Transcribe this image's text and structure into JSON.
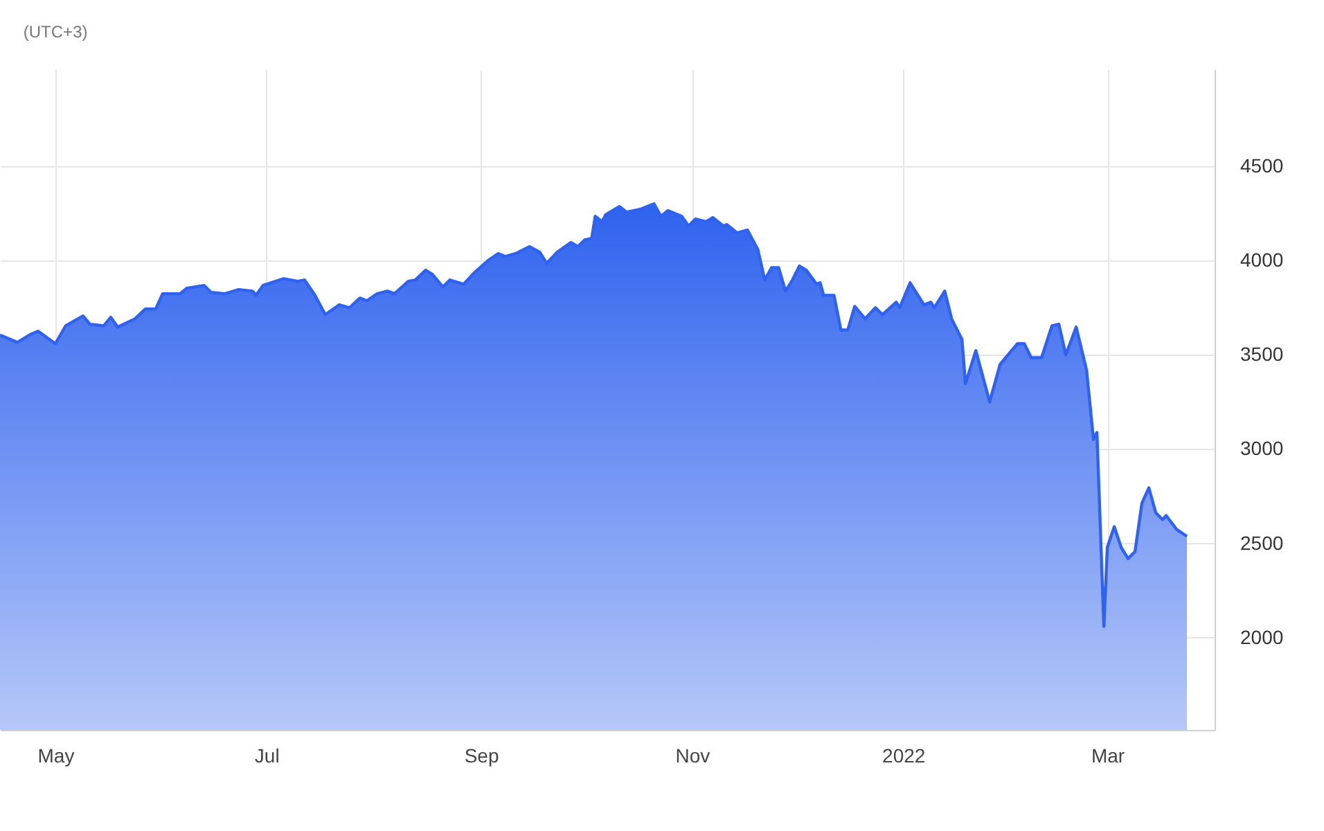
{
  "chart_data": {
    "type": "area",
    "title": "(UTC+3)",
    "x": [
      "2021-04-15",
      "2021-04-20",
      "2021-04-24",
      "2021-04-26",
      "2021-05-01",
      "2021-05-04",
      "2021-05-09",
      "2021-05-11",
      "2021-05-15",
      "2021-05-17",
      "2021-05-19",
      "2021-05-24",
      "2021-05-27",
      "2021-05-30",
      "2021-06-01",
      "2021-06-06",
      "2021-06-08",
      "2021-06-13",
      "2021-06-15",
      "2021-06-19",
      "2021-06-23",
      "2021-06-27",
      "2021-06-28",
      "2021-06-30",
      "2021-07-06",
      "2021-07-10",
      "2021-07-12",
      "2021-07-15",
      "2021-07-18",
      "2021-07-22",
      "2021-07-25",
      "2021-07-28",
      "2021-07-30",
      "2021-08-02",
      "2021-08-05",
      "2021-08-07",
      "2021-08-11",
      "2021-08-13",
      "2021-08-16",
      "2021-08-18",
      "2021-08-21",
      "2021-08-23",
      "2021-08-27",
      "2021-08-30",
      "2021-09-03",
      "2021-09-06",
      "2021-09-08",
      "2021-09-11",
      "2021-09-15",
      "2021-09-18",
      "2021-09-20",
      "2021-09-23",
      "2021-09-27",
      "2021-09-29",
      "2021-10-01",
      "2021-10-03",
      "2021-10-04",
      "2021-10-06",
      "2021-10-07",
      "2021-10-11",
      "2021-10-13",
      "2021-10-17",
      "2021-10-21",
      "2021-10-23",
      "2021-10-25",
      "2021-10-29",
      "2021-10-31",
      "2021-11-02",
      "2021-11-05",
      "2021-11-07",
      "2021-11-10",
      "2021-11-11",
      "2021-11-14",
      "2021-11-17",
      "2021-11-20",
      "2021-11-22",
      "2021-11-24",
      "2021-11-26",
      "2021-11-28",
      "2021-11-30",
      "2021-12-02",
      "2021-12-04",
      "2021-12-07",
      "2021-12-08",
      "2021-12-09",
      "2021-12-12",
      "2021-12-14",
      "2021-12-16",
      "2021-12-18",
      "2021-12-21",
      "2021-12-24",
      "2021-12-26",
      "2021-12-30",
      "2021-12-31",
      "2022-01-03",
      "2022-01-07",
      "2022-01-09",
      "2022-01-10",
      "2022-01-13",
      "2022-01-15",
      "2022-01-18",
      "2022-01-19",
      "2022-01-22",
      "2022-01-26",
      "2022-01-29",
      "2022-02-03",
      "2022-02-05",
      "2022-02-07",
      "2022-02-10",
      "2022-02-13",
      "2022-02-15",
      "2022-02-17",
      "2022-02-20",
      "2022-02-23",
      "2022-02-25",
      "2022-02-26",
      "2022-02-28",
      "2022-03-01",
      "2022-03-03",
      "2022-03-05",
      "2022-03-07",
      "2022-03-09",
      "2022-03-11",
      "2022-03-13",
      "2022-03-15",
      "2022-03-17",
      "2022-03-18",
      "2022-03-21",
      "2022-03-24"
    ],
    "series": [
      {
        "color": "#2f62ee",
        "values": [
          3605,
          3566,
          3610,
          3625,
          3559,
          3654,
          3706,
          3662,
          3654,
          3699,
          3647,
          3691,
          3743,
          3743,
          3824,
          3824,
          3853,
          3868,
          3831,
          3824,
          3846,
          3838,
          3816,
          3868,
          3904,
          3890,
          3897,
          3816,
          3713,
          3765,
          3750,
          3801,
          3787,
          3824,
          3838,
          3824,
          3890,
          3897,
          3949,
          3926,
          3860,
          3897,
          3875,
          3934,
          4000,
          4037,
          4022,
          4037,
          4074,
          4044,
          3985,
          4044,
          4096,
          4074,
          4110,
          4118,
          4235,
          4206,
          4243,
          4287,
          4257,
          4272,
          4301,
          4235,
          4265,
          4235,
          4184,
          4221,
          4206,
          4228,
          4184,
          4191,
          4147,
          4162,
          4059,
          3897,
          3963,
          3963,
          3838,
          3897,
          3971,
          3949,
          3875,
          3882,
          3816,
          3816,
          3632,
          3632,
          3757,
          3691,
          3750,
          3713,
          3779,
          3750,
          3882,
          3765,
          3779,
          3750,
          3838,
          3691,
          3581,
          3346,
          3522,
          3250,
          3449,
          3559,
          3559,
          3485,
          3485,
          3654,
          3662,
          3500,
          3647,
          3419,
          3051,
          3088,
          2059,
          2478,
          2588,
          2478,
          2419,
          2456,
          2713,
          2794,
          2662,
          2625,
          2647,
          2574,
          2537
        ]
      }
    ],
    "xlim": [
      "2021-04-15",
      "2022-04-01"
    ],
    "xticks": [
      {
        "value": "2021-05-01",
        "label": "May"
      },
      {
        "value": "2021-07-01",
        "label": "Jul"
      },
      {
        "value": "2021-09-01",
        "label": "Sep"
      },
      {
        "value": "2021-11-01",
        "label": "Nov"
      },
      {
        "value": "2022-01-01",
        "label": "2022"
      },
      {
        "value": "2022-03-01",
        "label": "Mar"
      }
    ],
    "ylim": [
      1510,
      5015
    ],
    "yticks": [
      2000,
      2500,
      3000,
      3500,
      4000,
      4500
    ],
    "grid": true,
    "line_style": "solid"
  }
}
